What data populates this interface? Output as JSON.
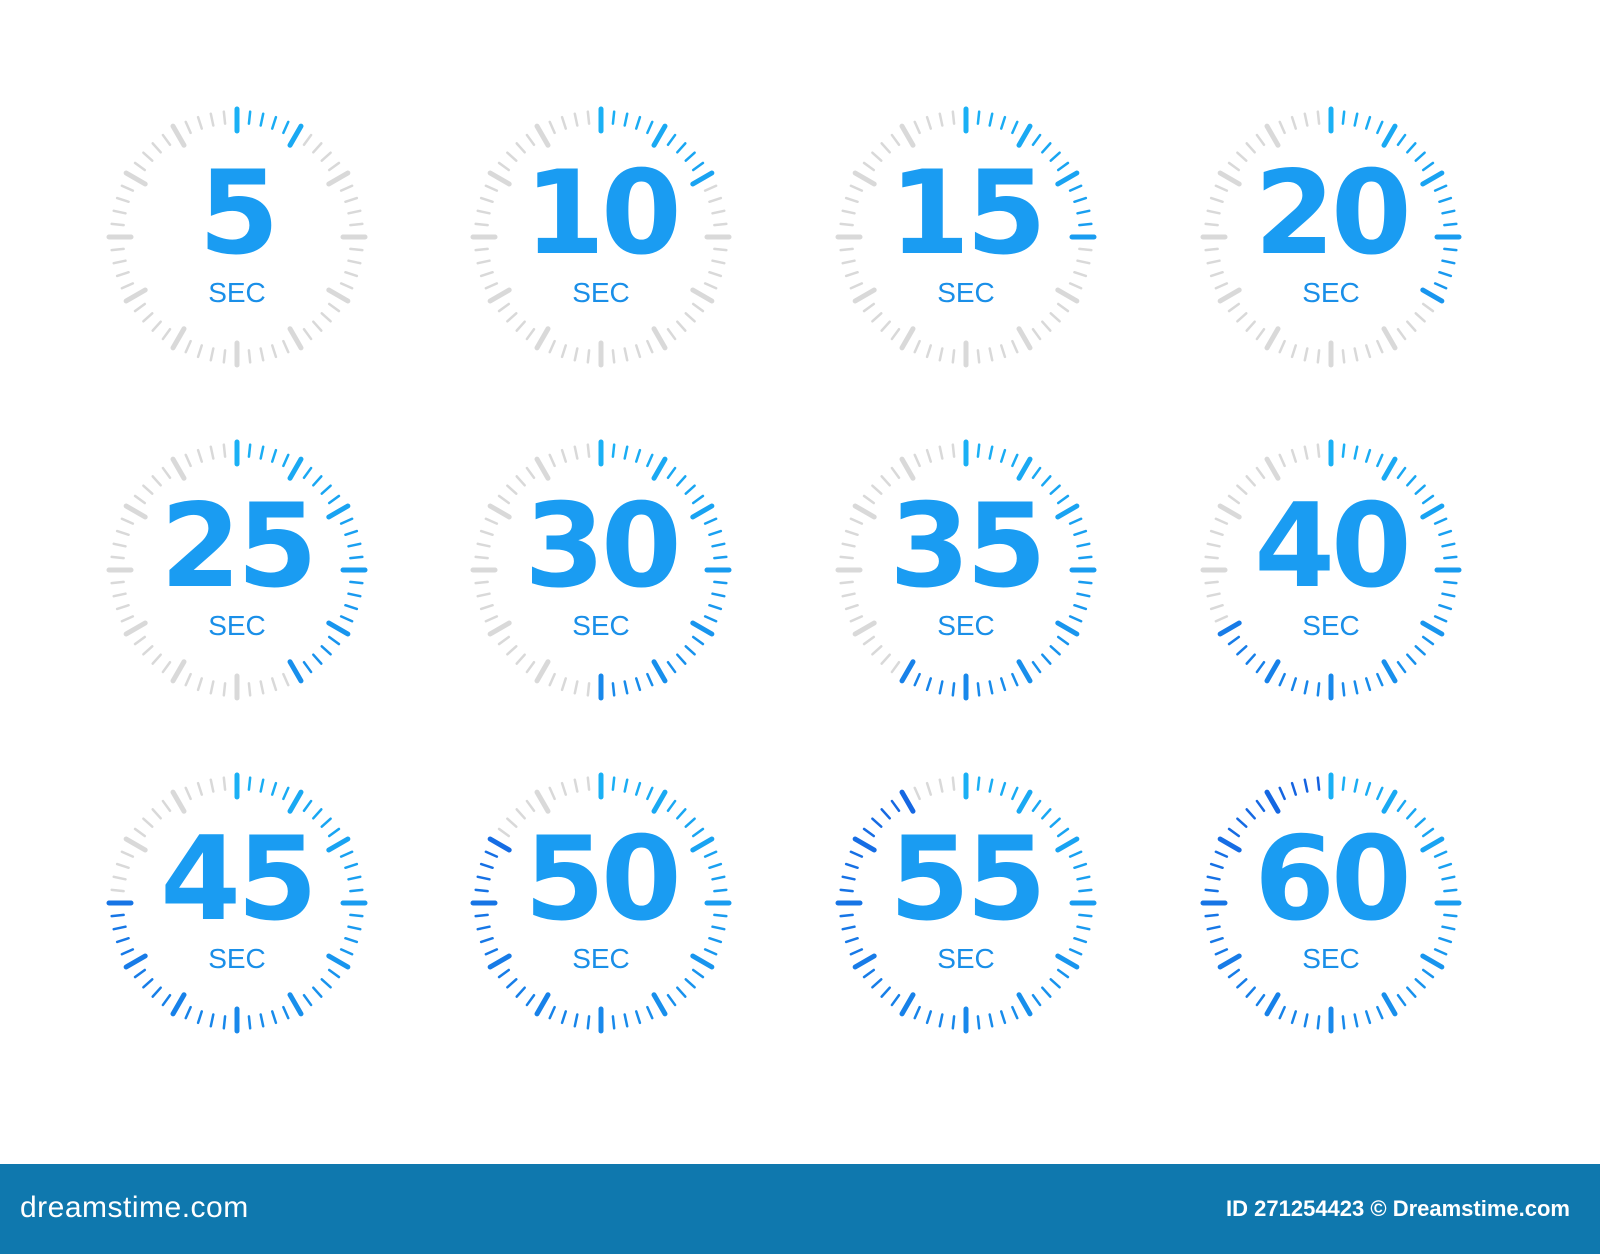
{
  "timers": [
    {
      "value": "5",
      "unit": "SEC",
      "seconds": 5
    },
    {
      "value": "10",
      "unit": "SEC",
      "seconds": 10
    },
    {
      "value": "15",
      "unit": "SEC",
      "seconds": 15
    },
    {
      "value": "20",
      "unit": "SEC",
      "seconds": 20
    },
    {
      "value": "25",
      "unit": "SEC",
      "seconds": 25
    },
    {
      "value": "30",
      "unit": "SEC",
      "seconds": 30
    },
    {
      "value": "35",
      "unit": "SEC",
      "seconds": 35
    },
    {
      "value": "40",
      "unit": "SEC",
      "seconds": 40
    },
    {
      "value": "45",
      "unit": "SEC",
      "seconds": 45
    },
    {
      "value": "50",
      "unit": "SEC",
      "seconds": 50
    },
    {
      "value": "55",
      "unit": "SEC",
      "seconds": 55
    },
    {
      "value": "60",
      "unit": "SEC",
      "seconds": 60
    }
  ],
  "colors": {
    "active_start": "#1ab0f5",
    "active_end": "#1560e0",
    "inactive": "#d9d9d9",
    "number": "#1a9cf2",
    "footer": "#0f78ae"
  },
  "footer": {
    "logo": "dreamstime.com",
    "credit": "ID 271254423 © Dreamstime.com"
  }
}
